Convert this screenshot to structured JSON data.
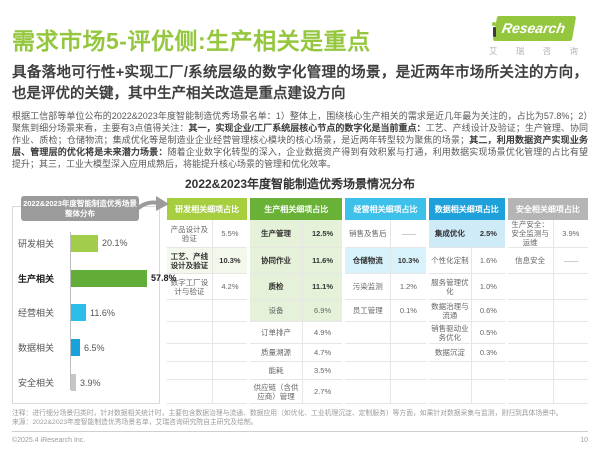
{
  "header": {
    "title": "需求市场5-评优侧:生产相关是重点",
    "logo": {
      "research": "Research",
      "cn": "艾 瑞 咨 询"
    }
  },
  "subtitle": "具备落地可行性+实现工厂/系统层级的数字化管理的场景，是近两年市场所关注的方向，也是评优的关键，其中生产相关改造是重点建设方向",
  "body": {
    "segments": [
      {
        "text": "根据工信部等单位公布的2022&2023年度智能制造优秀场景名单：1）整体上，围绕核心生产相关的需求是近几年最为关注的，占比为57.8%；2）聚焦到细分场景来看，主要有3点值得关注：",
        "bold": false
      },
      {
        "text": "其一，实现企业/工厂系统层核心节点的数字化是当前重点：",
        "bold": true
      },
      {
        "text": "工艺、产线设计及验证；生产管理、协同作业、质检；仓储物流；集成优化等是制造业企业经营管理核心模块的核心场景，是近两年转型较为聚焦的场景；",
        "bold": false
      },
      {
        "text": "其二，利用数据资产实现业务层、管理层的优化将是未来潜力场景：",
        "bold": true
      },
      {
        "text": "随着企业数字化转型的深入，企业数据资产得到有效积累与打通，利用数据实现场景优化管理的占比有望提升；其三，工业大模型深入应用成熟后，将能提升核心场景的管理和优化效率。",
        "bold": false
      }
    ]
  },
  "section_title": "2022&2023年度智能制造优秀场景情况分布",
  "chart_data": [
    {
      "type": "bar",
      "orientation": "horizontal",
      "title": "2022&2023年度智能制造优秀场景整体分布",
      "categories": [
        "研发相关",
        "生产相关",
        "经营相关",
        "数据相关",
        "安全相关"
      ],
      "values": [
        20.1,
        57.8,
        11.6,
        6.5,
        3.9
      ],
      "value_labels": [
        "20.1%",
        "57.8%",
        "11.6%",
        "6.5%",
        "3.9%"
      ],
      "unit": "%",
      "xlim": [
        0,
        60
      ],
      "grid": false,
      "emphasis_index": 1,
      "bar_colors": [
        "#A2CD4B",
        "#62AD37",
        "#2BBEEA",
        "#18A2DB",
        "#C6C6C6"
      ]
    },
    {
      "type": "table",
      "title": "2022&2023年度智能制造优秀场景情况分布",
      "groups": [
        {
          "header": "研发相关细项占比",
          "header_color": "#A6CE3F",
          "rows": [
            {
              "name": "产品设计及验证",
              "value": "5.5%"
            },
            {
              "name": "工艺、产线设计及验证",
              "value": "10.3%",
              "bold": true,
              "tint": "#F3F8EC"
            },
            {
              "name": "数字工厂设计与验证",
              "value": "4.2%"
            },
            {
              "name": "",
              "value": ""
            },
            {
              "name": "",
              "value": ""
            },
            {
              "name": "",
              "value": ""
            },
            {
              "name": "",
              "value": ""
            },
            {
              "name": "",
              "value": ""
            }
          ]
        },
        {
          "header": "生产相关细项占比",
          "header_color": "#69B237",
          "rows": [
            {
              "name": "生产管理",
              "value": "12.5%",
              "bold": true,
              "tint": "#E5F1D9"
            },
            {
              "name": "协同作业",
              "value": "11.6%",
              "bold": true,
              "tint": "#E5F1D9"
            },
            {
              "name": "质检",
              "value": "11.1%",
              "bold": true,
              "tint": "#E5F1D9"
            },
            {
              "name": "设备",
              "value": "6.9%",
              "tint": "#E5F1D9"
            },
            {
              "name": "订单排产",
              "value": "4.9%"
            },
            {
              "name": "质量溯源",
              "value": "4.7%"
            },
            {
              "name": "能耗",
              "value": "3.5%"
            },
            {
              "name": "供应链（含供应商）管理",
              "value": "2.7%"
            }
          ]
        },
        {
          "header": "经营相关细项占比",
          "header_color": "#3DC0E9",
          "rows": [
            {
              "name": "销售及售后",
              "value": "——",
              "dash": true
            },
            {
              "name": "仓储物流",
              "value": "10.3%",
              "bold": true,
              "tint": "#D7F2FB"
            },
            {
              "name": "污染监测",
              "value": "1.2%"
            },
            {
              "name": "员工管理",
              "value": "0.1%"
            },
            {
              "name": "",
              "value": ""
            },
            {
              "name": "",
              "value": ""
            },
            {
              "name": "",
              "value": ""
            },
            {
              "name": "",
              "value": ""
            }
          ]
        },
        {
          "header": "数据相关细项占比",
          "header_color": "#1EA0DB",
          "rows": [
            {
              "name": "集成优化",
              "value": "2.5%",
              "bold": true,
              "tint": "#CFEBF8"
            },
            {
              "name": "个性化定制",
              "value": "1.6%"
            },
            {
              "name": "服务管理优化",
              "value": "1.0%"
            },
            {
              "name": "数据治理与流通",
              "value": "0.6%"
            },
            {
              "name": "销售驱动业务优化",
              "value": "0.5%"
            },
            {
              "name": "数据沉淀",
              "value": "0.3%"
            },
            {
              "name": "",
              "value": ""
            },
            {
              "name": "",
              "value": ""
            }
          ]
        },
        {
          "header": "安全相关细项占比",
          "header_color": "#B5B5B5",
          "rows": [
            {
              "name": "生产安全：安全监测与运维",
              "value": "3.9%"
            },
            {
              "name": "信息安全",
              "value": "——",
              "dash": true
            },
            {
              "name": "",
              "value": ""
            },
            {
              "name": "",
              "value": ""
            },
            {
              "name": "",
              "value": ""
            },
            {
              "name": "",
              "value": ""
            },
            {
              "name": "",
              "value": ""
            },
            {
              "name": "",
              "value": ""
            }
          ]
        }
      ]
    }
  ],
  "notes": [
    "注释：进行细分场景归类时，针对数据相关统计时，主要包含数据治理与流通、数据应用（如优化、工业机理沉淀、定制服务）等方面，如果针对数据采集与监测，则归到具体场景中。",
    "来源：2022&2023年度智能制造优秀场景名单，艾瑞咨询研究院自主研究及绘制。"
  ],
  "footer": {
    "copyright": "©2025.4 iResearch Inc.",
    "page": "10"
  },
  "colors": {
    "brand_green": "#94C73E",
    "badge_gray": "#9B9B9B"
  }
}
